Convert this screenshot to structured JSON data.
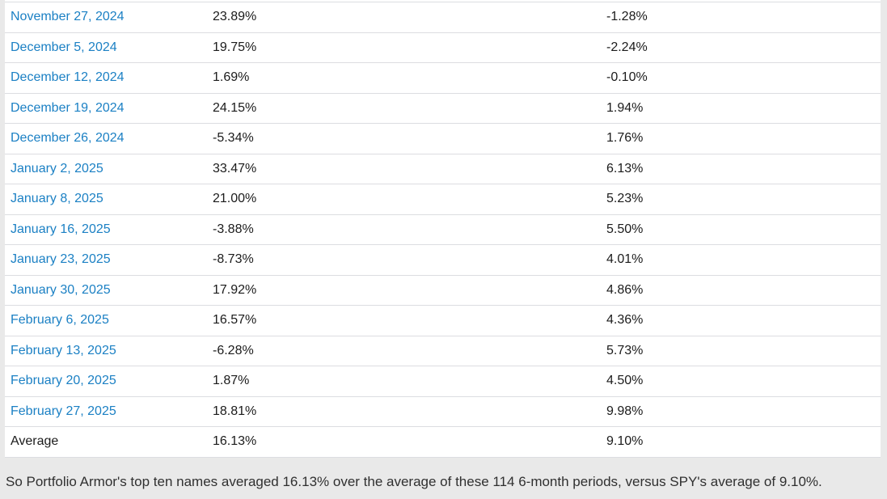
{
  "page": {
    "background_color": "#e9e9e9"
  },
  "table": {
    "link_color": "#1b80c4",
    "row_border_color": "#dcdde1",
    "text_color": "#1b1b1b",
    "rows": [
      {
        "date": "November 27, 2024",
        "top_ten_value": "23.89%",
        "spy_value": "-1.28%"
      },
      {
        "date": "December 5, 2024",
        "top_ten_value": "19.75%",
        "spy_value": "-2.24%"
      },
      {
        "date": "December 12, 2024",
        "top_ten_value": "1.69%",
        "spy_value": "-0.10%"
      },
      {
        "date": "December 19, 2024",
        "top_ten_value": "24.15%",
        "spy_value": "1.94%"
      },
      {
        "date": "December 26, 2024",
        "top_ten_value": "-5.34%",
        "spy_value": "1.76%"
      },
      {
        "date": "January 2, 2025",
        "top_ten_value": "33.47%",
        "spy_value": "6.13%"
      },
      {
        "date": "January 8, 2025",
        "top_ten_value": "21.00%",
        "spy_value": "5.23%"
      },
      {
        "date": "January 16, 2025",
        "top_ten_value": "-3.88%",
        "spy_value": "5.50%"
      },
      {
        "date": "January 23, 2025",
        "top_ten_value": "-8.73%",
        "spy_value": "4.01%"
      },
      {
        "date": "January 30, 2025",
        "top_ten_value": "17.92%",
        "spy_value": "4.86%"
      },
      {
        "date": "February 6, 2025",
        "top_ten_value": "16.57%",
        "spy_value": "4.36%"
      },
      {
        "date": "February 13, 2025",
        "top_ten_value": "-6.28%",
        "spy_value": "5.73%"
      },
      {
        "date": "February 20, 2025",
        "top_ten_value": "1.87%",
        "spy_value": "4.50%"
      },
      {
        "date": "February 27, 2025",
        "top_ten_value": "18.81%",
        "spy_value": "9.98%"
      }
    ],
    "average_row": {
      "label": "Average",
      "top_ten_value": "16.13%",
      "spy_value": "9.10%"
    }
  },
  "footer": {
    "text": "So Portfolio Armor's top ten names averaged 16.13% over the average of these 114 6-month periods, versus SPY's average of 9.10%."
  }
}
